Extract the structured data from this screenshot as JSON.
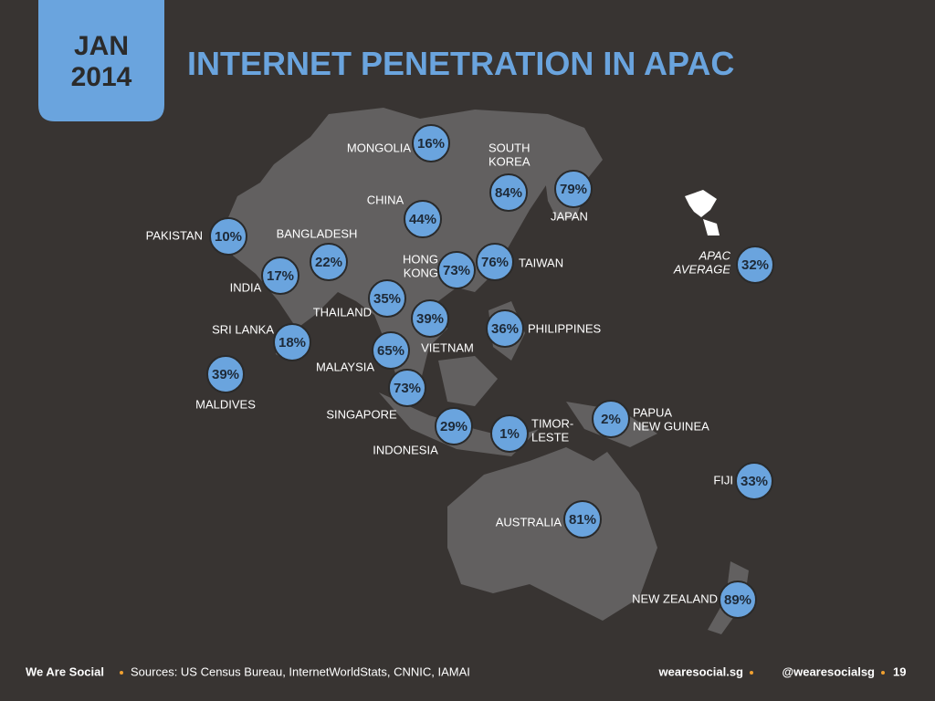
{
  "header": {
    "date_lines": [
      "JAN",
      "2014"
    ],
    "title": "INTERNET PENETRATION IN APAC"
  },
  "countries": [
    {
      "name": [
        "MONGOLIA"
      ],
      "penetration": "16%"
    },
    {
      "name": [
        "SOUTH",
        "KOREA"
      ],
      "penetration": "84%"
    },
    {
      "name": [
        "JAPAN"
      ],
      "penetration": "79%"
    },
    {
      "name": [
        "CHINA"
      ],
      "penetration": "44%"
    },
    {
      "name": [
        "PAKISTAN"
      ],
      "penetration": "10%"
    },
    {
      "name": [
        "BANGLADESH"
      ],
      "penetration": "22%"
    },
    {
      "name": [
        "INDIA"
      ],
      "penetration": "17%"
    },
    {
      "name": [
        "HONG",
        "KONG"
      ],
      "penetration": "73%"
    },
    {
      "name": [
        "TAIWAN"
      ],
      "penetration": "76%"
    },
    {
      "name": [
        "THAILAND"
      ],
      "penetration": "35%"
    },
    {
      "name": [
        "SRI LANKA"
      ],
      "penetration": "18%"
    },
    {
      "name": [
        "VIETNAM"
      ],
      "penetration": "39%"
    },
    {
      "name": [
        "PHILIPPINES"
      ],
      "penetration": "36%"
    },
    {
      "name": [
        "MALAYSIA"
      ],
      "penetration": "65%"
    },
    {
      "name": [
        "MALDIVES"
      ],
      "penetration": "39%"
    },
    {
      "name": [
        "SINGAPORE"
      ],
      "penetration": "73%"
    },
    {
      "name": [
        "INDONESIA"
      ],
      "penetration": "29%"
    },
    {
      "name": [
        "TIMOR-",
        "LESTE"
      ],
      "penetration": "1%"
    },
    {
      "name": [
        "PAPUA",
        "NEW GUINEA"
      ],
      "penetration": "2%"
    },
    {
      "name": [
        "FIJI"
      ],
      "penetration": "33%"
    },
    {
      "name": [
        "AUSTRALIA"
      ],
      "penetration": "81%"
    },
    {
      "name": [
        "NEW ZEALAND"
      ],
      "penetration": "89%"
    }
  ],
  "average": {
    "name": [
      "APAC",
      "AVERAGE"
    ],
    "penetration": "32%"
  },
  "footer": {
    "brand": "We Are Social",
    "sources": "Sources: US Census Bureau, InternetWorldStats, CNNIC, IAMAI",
    "website": "wearesocial.sg",
    "handle": "@wearesocialsg",
    "page": "19"
  }
}
